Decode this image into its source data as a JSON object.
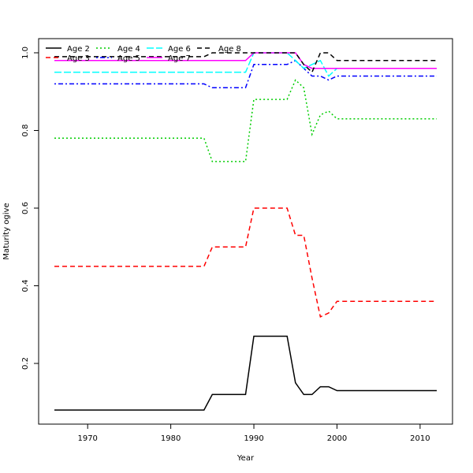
{
  "chart_data": {
    "type": "line",
    "title": "",
    "xlabel": "Year",
    "ylabel": "Maturity ogive",
    "xlim": [
      1964.1,
      2013.9
    ],
    "ylim": [
      0.0437,
      1.0365
    ],
    "xticks": [
      1970,
      1980,
      1990,
      2000,
      2010
    ],
    "yticks": [
      0.2,
      0.4,
      0.6,
      0.8,
      1.0
    ],
    "ytick_labels": [
      "0.2",
      "0.4",
      "0.6",
      "0.8",
      "1.0"
    ],
    "grid": false,
    "legend_position": "top-left",
    "x_start": 1966,
    "x_end": 2012,
    "series": [
      {
        "name": "Age 2",
        "color": "#000000",
        "dash": "solid",
        "segments": [
          [
            1966,
            0.08
          ],
          [
            1984,
            0.08
          ],
          [
            1985,
            0.12
          ],
          [
            1989,
            0.12
          ],
          [
            1990,
            0.27
          ],
          [
            1994,
            0.27
          ],
          [
            1995,
            0.15
          ],
          [
            1996,
            0.12
          ],
          [
            1997,
            0.12
          ],
          [
            1998,
            0.14
          ],
          [
            1999,
            0.14
          ],
          [
            2000,
            0.13
          ],
          [
            2012,
            0.13
          ]
        ]
      },
      {
        "name": "Age 3",
        "color": "#ff0000",
        "dash": "dashed",
        "segments": [
          [
            1966,
            0.45
          ],
          [
            1984,
            0.45
          ],
          [
            1985,
            0.5
          ],
          [
            1989,
            0.5
          ],
          [
            1990,
            0.6
          ],
          [
            1994,
            0.6
          ],
          [
            1995,
            0.53
          ],
          [
            1996,
            0.53
          ],
          [
            1997,
            0.42
          ],
          [
            1998,
            0.32
          ],
          [
            1999,
            0.33
          ],
          [
            2000,
            0.36
          ],
          [
            2012,
            0.36
          ]
        ]
      },
      {
        "name": "Age 4",
        "color": "#00cd00",
        "dash": "dotted",
        "segments": [
          [
            1966,
            0.78
          ],
          [
            1984,
            0.78
          ],
          [
            1985,
            0.72
          ],
          [
            1989,
            0.72
          ],
          [
            1990,
            0.88
          ],
          [
            1994,
            0.88
          ],
          [
            1995,
            0.93
          ],
          [
            1996,
            0.91
          ],
          [
            1997,
            0.79
          ],
          [
            1998,
            0.84
          ],
          [
            1999,
            0.85
          ],
          [
            2000,
            0.83
          ],
          [
            2012,
            0.83
          ]
        ]
      },
      {
        "name": "Age 5",
        "color": "#0000ff",
        "dash": "dotdash",
        "segments": [
          [
            1966,
            0.92
          ],
          [
            1984,
            0.92
          ],
          [
            1985,
            0.91
          ],
          [
            1989,
            0.91
          ],
          [
            1990,
            0.97
          ],
          [
            1994,
            0.97
          ],
          [
            1995,
            0.98
          ],
          [
            1996,
            0.96
          ],
          [
            1997,
            0.94
          ],
          [
            1998,
            0.94
          ],
          [
            1999,
            0.93
          ],
          [
            2000,
            0.94
          ],
          [
            2012,
            0.94
          ]
        ]
      },
      {
        "name": "Age 6",
        "color": "#00ffff",
        "dash": "longdash",
        "segments": [
          [
            1966,
            0.95
          ],
          [
            1989,
            0.95
          ],
          [
            1990,
            1.0
          ],
          [
            1994,
            1.0
          ],
          [
            1995,
            0.98
          ],
          [
            1996,
            0.96
          ],
          [
            1997,
            0.97
          ],
          [
            1998,
            0.98
          ],
          [
            1999,
            0.94
          ],
          [
            2000,
            0.96
          ],
          [
            2012,
            0.96
          ]
        ]
      },
      {
        "name": "Age 7",
        "color": "#ff00ff",
        "dash": "solid",
        "segments": [
          [
            1966,
            0.98
          ],
          [
            1989,
            0.98
          ],
          [
            1990,
            1.0
          ],
          [
            1995,
            1.0
          ],
          [
            1996,
            0.97
          ],
          [
            1997,
            0.96
          ],
          [
            2012,
            0.96
          ]
        ]
      },
      {
        "name": "Age 8",
        "color": "#000000",
        "dash": "dashed",
        "segments": [
          [
            1966,
            0.99
          ],
          [
            1984,
            0.99
          ],
          [
            1985,
            1.0
          ],
          [
            1995,
            1.0
          ],
          [
            1996,
            0.97
          ],
          [
            1997,
            0.95
          ],
          [
            1998,
            1.0
          ],
          [
            1999,
            1.0
          ],
          [
            2000,
            0.98
          ],
          [
            2012,
            0.98
          ]
        ]
      }
    ]
  }
}
